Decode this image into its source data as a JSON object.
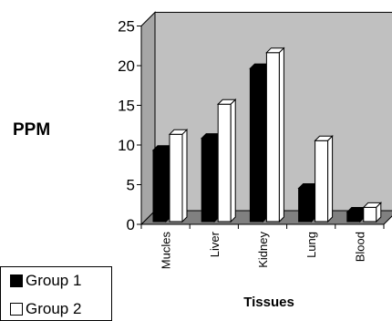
{
  "chart_data": {
    "type": "bar",
    "subtype": "3d-clustered",
    "categories": [
      "Mucles",
      "Liver",
      "Kidney",
      "Lung",
      "Blood"
    ],
    "series": [
      {
        "name": "Group 1",
        "values": [
          9,
          10.5,
          19.3,
          4.2,
          1.2
        ],
        "color": "#000000"
      },
      {
        "name": "Group 2",
        "values": [
          11,
          14.8,
          21.3,
          10.2,
          1.8
        ],
        "color": "#ffffff"
      }
    ],
    "xlabel": "Tissues",
    "ylabel": "PPM",
    "ylim": [
      0,
      25
    ],
    "yticks": [
      0,
      5,
      10,
      15,
      20,
      25
    ],
    "grid": false,
    "plot_background": "#c0c0c0",
    "legend_position": "bottom-left"
  },
  "legend": {
    "group1_label": "Group 1",
    "group2_label": "Group 2"
  }
}
